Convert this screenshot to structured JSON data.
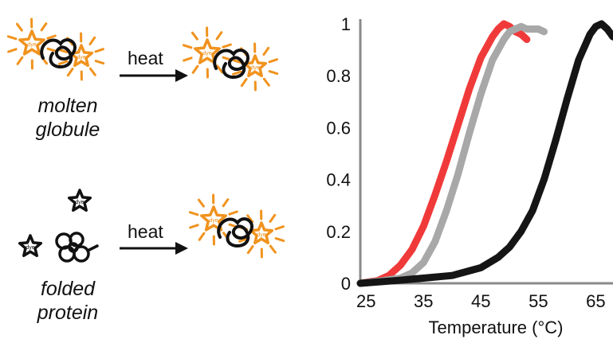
{
  "diagram": {
    "rows": [
      {
        "state_line1": "molten",
        "state_line2": "globule",
        "arrow_label": "heat"
      },
      {
        "state_line1": "folded",
        "state_line2": "protein",
        "arrow_label": "heat"
      }
    ],
    "dye_label": "dye",
    "colors": {
      "dye_orange": "#f0931e",
      "protein_black": "#111111"
    }
  },
  "chart_data": {
    "type": "scatter",
    "xlabel": "Temperature (°C)",
    "ylabel": "",
    "xlim": [
      24,
      68
    ],
    "ylim": [
      0,
      1
    ],
    "x_ticks": [
      25,
      35,
      45,
      55,
      65
    ],
    "y_ticks": [
      0,
      0.2,
      0.4,
      0.6,
      0.8,
      1
    ],
    "y_tick_labels": [
      "0",
      "0.2",
      "0.4",
      "0.6",
      "0.8",
      "1"
    ],
    "series": [
      {
        "color": "#f03a3a",
        "x": [
          24,
          27,
          29,
          31,
          33,
          35,
          37,
          39,
          41,
          43,
          45,
          47,
          48,
          49,
          50,
          51,
          52,
          53
        ],
        "y": [
          0.0,
          0.01,
          0.03,
          0.07,
          0.13,
          0.22,
          0.34,
          0.47,
          0.61,
          0.75,
          0.87,
          0.95,
          0.98,
          1.0,
          0.99,
          0.97,
          0.96,
          0.94
        ]
      },
      {
        "color": "#a8a8a8",
        "x": [
          24,
          28,
          31,
          33,
          35,
          37,
          39,
          41,
          43,
          45,
          47,
          49,
          50,
          51,
          52,
          53,
          55,
          56
        ],
        "y": [
          0.0,
          0.01,
          0.02,
          0.04,
          0.08,
          0.16,
          0.28,
          0.42,
          0.58,
          0.73,
          0.86,
          0.94,
          0.97,
          0.98,
          0.99,
          0.98,
          0.98,
          0.97
        ]
      },
      {
        "color": "#151515",
        "x": [
          24,
          30,
          35,
          40,
          45,
          48,
          50,
          52,
          54,
          56,
          58,
          60,
          62,
          64,
          65,
          66,
          67,
          68
        ],
        "y": [
          0.0,
          0.01,
          0.02,
          0.03,
          0.06,
          0.1,
          0.14,
          0.2,
          0.28,
          0.4,
          0.55,
          0.71,
          0.86,
          0.96,
          0.99,
          1.0,
          0.98,
          0.95
        ]
      }
    ]
  }
}
